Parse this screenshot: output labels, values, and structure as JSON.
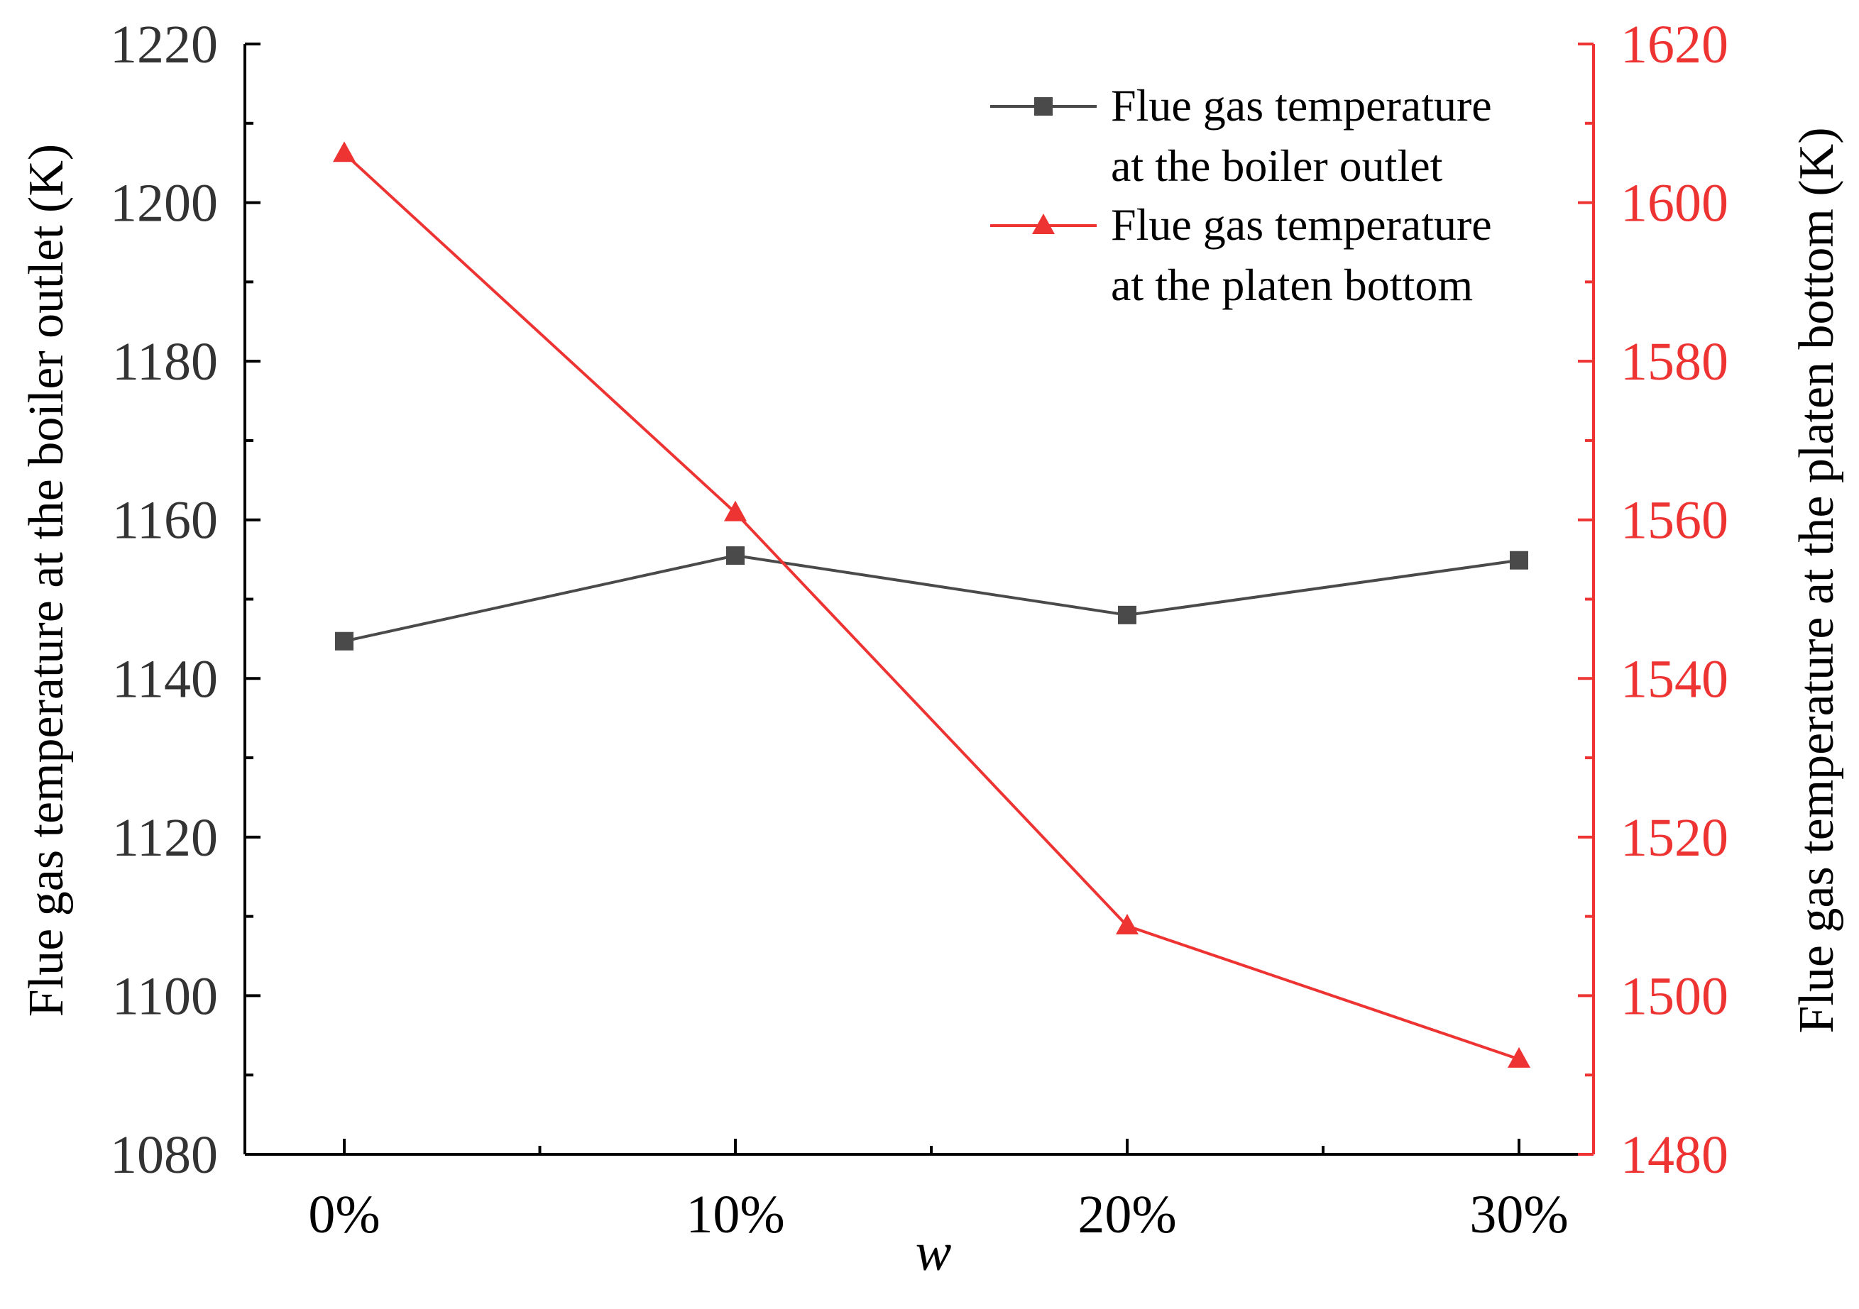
{
  "chart_data": {
    "type": "line",
    "categories": [
      "0%",
      "10%",
      "20%",
      "30%"
    ],
    "xlabel": "w",
    "y_left": {
      "label": "Flue gas temperature at the boiler outlet (K)",
      "lim": [
        1080,
        1220
      ],
      "ticks": [
        "1080",
        "1100",
        "1120",
        "1140",
        "1160",
        "1180",
        "1200",
        "1220"
      ],
      "tick_values": [
        1080,
        1100,
        1120,
        1140,
        1160,
        1180,
        1200,
        1220
      ],
      "color": "#000000",
      "tick_color": "#333333"
    },
    "y_right": {
      "label": "Flue gas temperature at the platen bottom (K)",
      "lim": [
        1480,
        1620
      ],
      "ticks": [
        "1480",
        "1500",
        "1520",
        "1540",
        "1560",
        "1580",
        "1600",
        "1620"
      ],
      "tick_values": [
        1480,
        1500,
        1520,
        1540,
        1560,
        1580,
        1600,
        1620
      ],
      "color": "#ee3333"
    },
    "series": [
      {
        "name": "Flue gas temperature at the boiler outlet",
        "legend_lines": [
          "Flue gas temperature",
          "at the boiler outlet"
        ],
        "axis": "left",
        "marker": "square",
        "color": "#4a4a4a",
        "values": [
          1144.7,
          1155.5,
          1148.0,
          1154.9
        ]
      },
      {
        "name": "Flue gas temperature at the platen bottom",
        "legend_lines": [
          "Flue gas temperature",
          "at the platen bottom"
        ],
        "axis": "right",
        "marker": "triangle",
        "color": "#ee3333",
        "values": [
          1606.2,
          1560.9,
          1508.8,
          1492.0
        ]
      }
    ],
    "legend_position": "top-right",
    "grid": false
  }
}
